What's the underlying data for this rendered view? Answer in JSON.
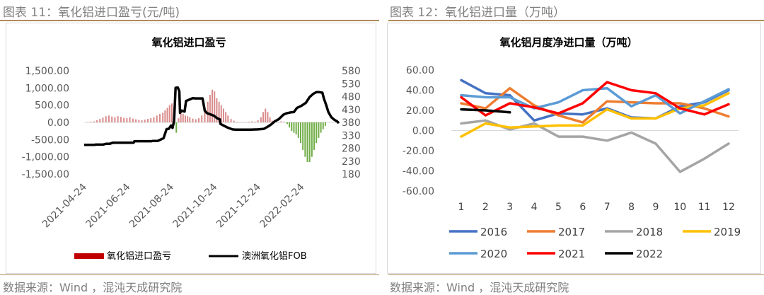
{
  "captions": {
    "left": "图表 11：氧化铝进口盈亏(元/吨)",
    "right": "图表 12：氧化铝进口量（万吨）",
    "source_left": "数据来源：Wind ，混沌天成研究院",
    "source_right": "数据来源：Wind ，混沌天成研究院"
  },
  "colors": {
    "caption": "#7f7f7f",
    "rule": "#b08c5a",
    "bar_pos": "#d98b8b",
    "bar_pos_legend": "#c00000",
    "bar_neg": "#70ad47",
    "fob_line": "#000000",
    "grid": "#d9d9d9"
  },
  "chart_data": [
    {
      "type": "bar+line",
      "title": "氧化铝进口盈亏",
      "y_left_ticks": [
        "1,500.00",
        "1,000.00",
        "500.00",
        "0.00",
        "-500.00",
        "-1,000.00",
        "-1,500.00"
      ],
      "y_left_range": [
        -1500,
        1500
      ],
      "y_right_ticks": [
        "580",
        "530",
        "480",
        "430",
        "380",
        "330",
        "280",
        "230",
        "180"
      ],
      "y_right_range": [
        180,
        580
      ],
      "x_ticks": [
        "2021-04-24",
        "2021-06-24",
        "2021-08-24",
        "2021-10-24",
        "2021-12-24",
        "2022-02-24"
      ],
      "x_range_days": [
        0,
        340
      ],
      "legend": [
        "氧化铝进口盈亏",
        "澳洲氧化铝FOB"
      ],
      "profit_bars": [
        {
          "day": 5,
          "value": 10
        },
        {
          "day": 9,
          "value": 20
        },
        {
          "day": 13,
          "value": 30
        },
        {
          "day": 17,
          "value": 60
        },
        {
          "day": 21,
          "value": 100
        },
        {
          "day": 25,
          "value": 140
        },
        {
          "day": 29,
          "value": 180
        },
        {
          "day": 33,
          "value": 200
        },
        {
          "day": 37,
          "value": 170
        },
        {
          "day": 41,
          "value": 150
        },
        {
          "day": 45,
          "value": 180
        },
        {
          "day": 49,
          "value": 160
        },
        {
          "day": 53,
          "value": 130
        },
        {
          "day": 57,
          "value": 120
        },
        {
          "day": 61,
          "value": 150
        },
        {
          "day": 65,
          "value": 110
        },
        {
          "day": 69,
          "value": 90
        },
        {
          "day": 73,
          "value": 70
        },
        {
          "day": 77,
          "value": 60
        },
        {
          "day": 81,
          "value": 80
        },
        {
          "day": 85,
          "value": 100
        },
        {
          "day": 89,
          "value": 120
        },
        {
          "day": 93,
          "value": 150
        },
        {
          "day": 97,
          "value": 200
        },
        {
          "day": 101,
          "value": 250
        },
        {
          "day": 105,
          "value": 280
        },
        {
          "day": 108,
          "value": 350
        },
        {
          "day": 111,
          "value": 420
        },
        {
          "day": 114,
          "value": 500
        },
        {
          "day": 117,
          "value": 550
        },
        {
          "day": 120,
          "value": 450
        },
        {
          "day": 123,
          "value": -300
        },
        {
          "day": 126,
          "value": 120
        },
        {
          "day": 129,
          "value": 300
        },
        {
          "day": 132,
          "value": 250
        },
        {
          "day": 135,
          "value": 200
        },
        {
          "day": 138,
          "value": 180
        },
        {
          "day": 141,
          "value": 150
        },
        {
          "day": 145,
          "value": 110
        },
        {
          "day": 149,
          "value": 90
        },
        {
          "day": 153,
          "value": 120
        },
        {
          "day": 157,
          "value": 200
        },
        {
          "day": 161,
          "value": 350
        },
        {
          "day": 165,
          "value": 600
        },
        {
          "day": 168,
          "value": 800
        },
        {
          "day": 171,
          "value": 950
        },
        {
          "day": 174,
          "value": 900
        },
        {
          "day": 177,
          "value": 700
        },
        {
          "day": 180,
          "value": 600
        },
        {
          "day": 183,
          "value": 500
        },
        {
          "day": 186,
          "value": 400
        },
        {
          "day": 189,
          "value": 300
        },
        {
          "day": 192,
          "value": 200
        },
        {
          "day": 196,
          "value": 100
        },
        {
          "day": 200,
          "value": 50
        },
        {
          "day": 204,
          "value": 20
        },
        {
          "day": 208,
          "value": 10
        },
        {
          "day": 212,
          "value": 5
        },
        {
          "day": 216,
          "value": 10
        },
        {
          "day": 220,
          "value": 20
        },
        {
          "day": 224,
          "value": 30
        },
        {
          "day": 228,
          "value": 20
        },
        {
          "day": 232,
          "value": 60
        },
        {
          "day": 236,
          "value": 150
        },
        {
          "day": 239,
          "value": 300
        },
        {
          "day": 242,
          "value": 400
        },
        {
          "day": 245,
          "value": 300
        },
        {
          "day": 248,
          "value": 150
        },
        {
          "day": 251,
          "value": 50
        },
        {
          "day": 255,
          "value": 20
        },
        {
          "day": 259,
          "value": 10
        },
        {
          "day": 263,
          "value": 30
        },
        {
          "day": 267,
          "value": 20
        },
        {
          "day": 271,
          "value": -50
        },
        {
          "day": 274,
          "value": -150
        },
        {
          "day": 277,
          "value": -250
        },
        {
          "day": 280,
          "value": -300
        },
        {
          "day": 283,
          "value": -350
        },
        {
          "day": 286,
          "value": -450
        },
        {
          "day": 289,
          "value": -600
        },
        {
          "day": 292,
          "value": -800
        },
        {
          "day": 295,
          "value": -1000
        },
        {
          "day": 298,
          "value": -1150
        },
        {
          "day": 301,
          "value": -1150
        },
        {
          "day": 304,
          "value": -1000
        },
        {
          "day": 307,
          "value": -800
        },
        {
          "day": 310,
          "value": -600
        },
        {
          "day": 313,
          "value": -450
        },
        {
          "day": 316,
          "value": -300
        },
        {
          "day": 319,
          "value": -200
        },
        {
          "day": 322,
          "value": -100
        }
      ],
      "fob_line": [
        [
          0,
          293
        ],
        [
          14,
          293
        ],
        [
          15,
          294
        ],
        [
          25,
          294
        ],
        [
          29,
          297
        ],
        [
          34,
          297
        ],
        [
          38,
          301
        ],
        [
          66,
          301
        ],
        [
          67,
          307
        ],
        [
          90,
          307
        ],
        [
          91,
          308
        ],
        [
          98,
          308
        ],
        [
          106,
          319
        ],
        [
          110,
          354
        ],
        [
          113,
          355
        ],
        [
          116,
          368
        ],
        [
          118,
          359
        ],
        [
          120,
          386
        ],
        [
          122,
          514
        ],
        [
          125,
          515
        ],
        [
          127,
          500
        ],
        [
          128,
          417
        ],
        [
          130,
          426
        ],
        [
          132,
          423
        ],
        [
          134,
          422
        ],
        [
          136,
          463
        ],
        [
          145,
          474
        ],
        [
          148,
          473
        ],
        [
          158,
          473
        ],
        [
          161,
          425
        ],
        [
          164,
          416
        ],
        [
          173,
          406
        ],
        [
          178,
          395
        ],
        [
          181,
          392
        ],
        [
          182,
          374
        ],
        [
          186,
          368
        ],
        [
          190,
          362
        ],
        [
          194,
          357
        ],
        [
          198,
          353
        ],
        [
          202,
          352
        ],
        [
          212,
          352
        ],
        [
          222,
          352
        ],
        [
          232,
          353
        ],
        [
          240,
          355
        ],
        [
          246,
          365
        ],
        [
          250,
          373
        ],
        [
          254,
          383
        ],
        [
          260,
          393
        ],
        [
          266,
          410
        ],
        [
          270,
          415
        ],
        [
          276,
          419
        ],
        [
          280,
          420
        ],
        [
          284,
          436
        ],
        [
          290,
          444
        ],
        [
          296,
          456
        ],
        [
          301,
          478
        ],
        [
          306,
          491
        ],
        [
          310,
          497
        ],
        [
          314,
          497
        ],
        [
          318,
          495
        ],
        [
          320,
          473
        ],
        [
          323,
          448
        ],
        [
          326,
          420
        ],
        [
          330,
          400
        ],
        [
          334,
          390
        ],
        [
          338,
          383
        ],
        [
          340,
          377
        ]
      ]
    },
    {
      "type": "line",
      "title": "氧化铝月度净进口量（万吨）",
      "categories": [
        "1",
        "2",
        "3",
        "4",
        "5",
        "6",
        "7",
        "8",
        "9",
        "10",
        "11",
        "12"
      ],
      "y_ticks": [
        "60.00",
        "40.00",
        "20.00",
        "0.00",
        "-20.00",
        "-40.00",
        "-60.00"
      ],
      "ylim": [
        -60,
        60
      ],
      "series": [
        {
          "name": "2016",
          "color": "#4472c4",
          "values": [
            50,
            37,
            35,
            10,
            17,
            16,
            22,
            13,
            12,
            24,
            28,
            40
          ]
        },
        {
          "name": "2017",
          "color": "#ed7d31",
          "values": [
            27,
            22,
            42,
            25,
            15,
            8,
            29,
            28,
            27,
            27,
            22,
            14
          ]
        },
        {
          "name": "2018",
          "color": "#a5a5a5",
          "values": [
            7,
            10,
            1,
            7,
            -6,
            -6,
            -10,
            -2,
            -13,
            -41,
            -28,
            -13
          ]
        },
        {
          "name": "2019",
          "color": "#ffc000",
          "values": [
            -6,
            7,
            3,
            4,
            5,
            5,
            21,
            12,
            12,
            22,
            25,
            37
          ]
        },
        {
          "name": "2020",
          "color": "#5b9bd5",
          "values": [
            35,
            33,
            33,
            22,
            28,
            40,
            42,
            24,
            35,
            17,
            29,
            41
          ]
        },
        {
          "name": "2021",
          "color": "#ff0000",
          "values": [
            33,
            15,
            27,
            23,
            17,
            27,
            48,
            40,
            37,
            22,
            16,
            26
          ]
        },
        {
          "name": "2022",
          "color": "#000000",
          "values": [
            21,
            20,
            18,
            null,
            null,
            null,
            null,
            null,
            null,
            null,
            null,
            null
          ]
        }
      ]
    }
  ]
}
